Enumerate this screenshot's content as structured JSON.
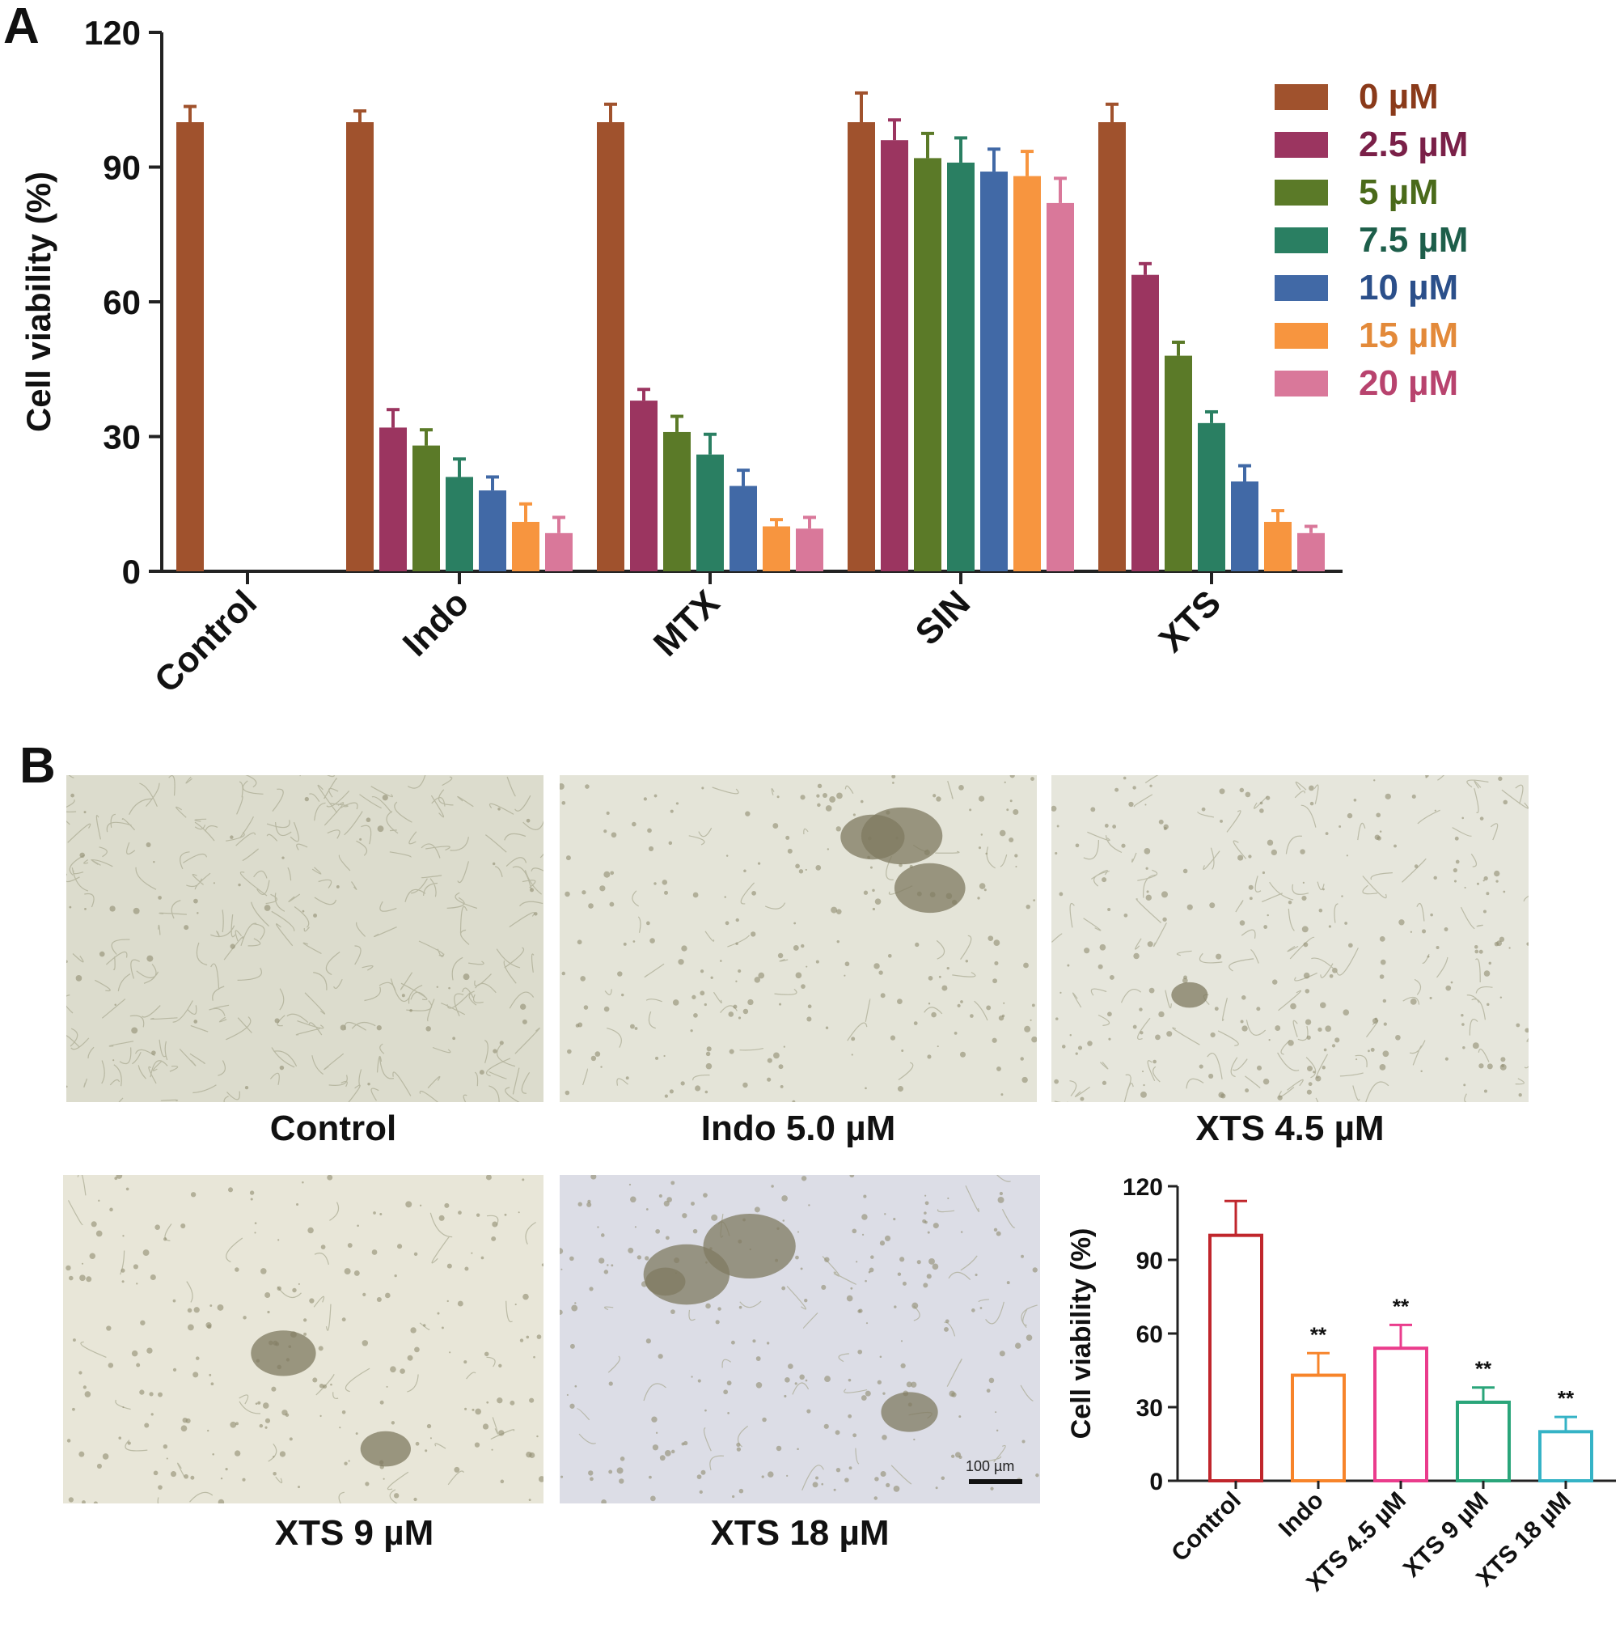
{
  "panels": {
    "a": "A",
    "b": "B"
  },
  "chart_data": [
    {
      "type": "bar",
      "panel": "A",
      "title": "",
      "xlabel": "",
      "ylabel": "Cell viability (%)",
      "ylim": [
        0,
        120
      ],
      "yticks": [
        "0",
        "30",
        "60",
        "90",
        "120"
      ],
      "categories": [
        "Control",
        "Indo",
        "MTX",
        "SIN",
        "XTS"
      ],
      "legend_position": "top-right",
      "series": [
        {
          "name": "0 µM",
          "color": "#a0522d",
          "values": [
            100,
            100,
            100,
            100,
            100
          ],
          "errors": [
            3.5,
            2.5,
            4,
            6.5,
            4
          ]
        },
        {
          "name": "2.5 µM",
          "color": "#9b3560",
          "values": [
            null,
            32,
            38,
            96,
            66
          ],
          "errors": [
            null,
            4,
            2.5,
            4.5,
            2.5
          ]
        },
        {
          "name": "5 µM",
          "color": "#5b7a28",
          "values": [
            null,
            28,
            31,
            92,
            48
          ],
          "errors": [
            null,
            3.5,
            3.5,
            5.5,
            3
          ]
        },
        {
          "name": "7.5 µM",
          "color": "#2a7f62",
          "values": [
            null,
            21,
            26,
            91,
            33
          ],
          "errors": [
            null,
            4,
            4.5,
            5.5,
            2.5
          ]
        },
        {
          "name": "10 µM",
          "color": "#4169a6",
          "values": [
            null,
            18,
            19,
            89,
            20
          ],
          "errors": [
            null,
            3,
            3.5,
            5,
            3.5
          ]
        },
        {
          "name": "15 µM",
          "color": "#f7953f",
          "values": [
            null,
            11,
            10,
            88,
            11
          ],
          "errors": [
            null,
            4,
            1.5,
            5.5,
            2.5
          ]
        },
        {
          "name": "20 µM",
          "color": "#d9789a",
          "values": [
            null,
            8.5,
            9.5,
            82,
            8.5
          ],
          "errors": [
            null,
            3.5,
            2.5,
            5.5,
            1.5
          ]
        }
      ],
      "legend_text_colors": [
        "#8a3a1a",
        "#7a2048",
        "#4a6a1a",
        "#1d5e4a",
        "#2b4f8a",
        "#e38a3a",
        "#b8436e"
      ]
    },
    {
      "type": "bar",
      "panel": "B",
      "style": "open",
      "title": "",
      "xlabel": "",
      "ylabel": "Cell viability (%)",
      "ylim": [
        0,
        120
      ],
      "yticks": [
        "0",
        "30",
        "60",
        "90",
        "120"
      ],
      "categories": [
        "Control",
        "Indo",
        "XTS 4.5 µM",
        "XTS 9 µM",
        "XTS 18 µM"
      ],
      "values": [
        100,
        43,
        54,
        32,
        20
      ],
      "errors": [
        14,
        9,
        9.5,
        6,
        6
      ],
      "annotations": [
        "",
        "**",
        "**",
        "**",
        "**"
      ],
      "colors": [
        "#c0262c",
        "#f7842a",
        "#ea3c8c",
        "#2aa57a",
        "#35b3c6"
      ]
    }
  ],
  "micrographs": [
    {
      "label": "Control",
      "tint": "#dcdccd",
      "clumps": 0
    },
    {
      "label": "Indo 5.0 µM",
      "tint": "#e4e4d8",
      "clumps": 3
    },
    {
      "label": "XTS 4.5 µM",
      "tint": "#e6e6dc",
      "clumps": 1
    },
    {
      "label": "XTS 9 µM",
      "tint": "#e8e6d8",
      "clumps": 2
    },
    {
      "label": "XTS 18 µM",
      "tint": "#dcdde6",
      "clumps": 4
    }
  ],
  "scale_bar": "100 µm"
}
